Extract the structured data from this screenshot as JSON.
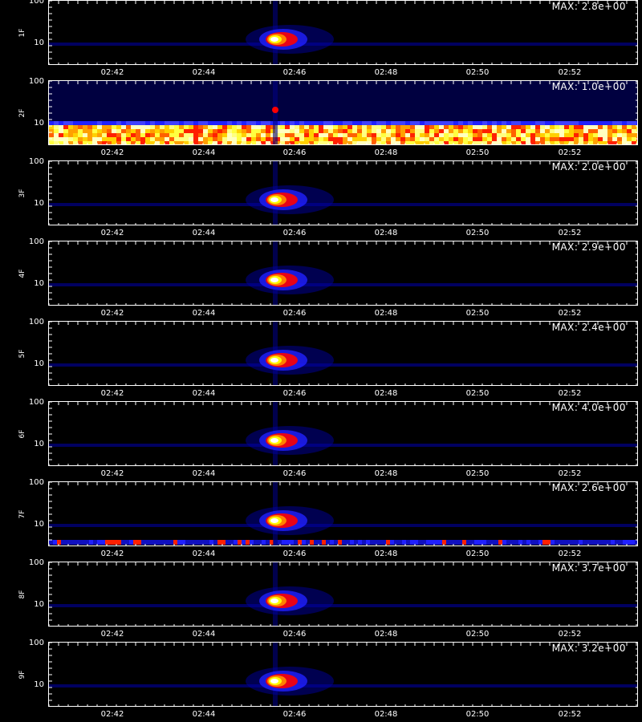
{
  "chart_data": {
    "type": "heatmap",
    "x_tick_labels": [
      "02:42",
      "02:44",
      "02:46",
      "02:48",
      "02:50",
      "02:52"
    ],
    "y_tick_labels": [
      "100",
      "10"
    ],
    "y_scale": "log",
    "colormap": [
      "#000000",
      "#0000ff",
      "#ff0000",
      "#ffff00",
      "#ffffff"
    ],
    "panels": [
      {
        "label": "1F",
        "max_text": "MAX: 2.8e+00",
        "burst_x": "02:45:30",
        "burst_y": 10,
        "background_band": "none"
      },
      {
        "label": "2F",
        "max_text": "MAX: 1.0e+00",
        "burst_x": "02:45:30",
        "burst_y": 20,
        "background_band": "strong-low-frequency"
      },
      {
        "label": "3F",
        "max_text": "MAX: 2.0e+00",
        "burst_x": "02:45:30",
        "burst_y": 10,
        "background_band": "none"
      },
      {
        "label": "4F",
        "max_text": "MAX: 2.9e+00",
        "burst_x": "02:45:30",
        "burst_y": 10,
        "background_band": "none"
      },
      {
        "label": "5F",
        "max_text": "MAX: 2.4e+00",
        "burst_x": "02:45:30",
        "burst_y": 10,
        "background_band": "none"
      },
      {
        "label": "6F",
        "max_text": "MAX: 4.0e+00",
        "burst_x": "02:45:30",
        "burst_y": 10,
        "background_band": "none"
      },
      {
        "label": "7F",
        "max_text": "MAX: 2.6e+00",
        "burst_x": "02:45:30",
        "burst_y": 10,
        "background_band": "weak-low-frequency"
      },
      {
        "label": "8F",
        "max_text": "MAX: 3.7e+00",
        "burst_x": "02:45:30",
        "burst_y": 10,
        "background_band": "none"
      },
      {
        "label": "9F",
        "max_text": "MAX: 3.2e+00",
        "burst_x": "02:45:30",
        "burst_y": 10,
        "background_band": "none"
      }
    ]
  }
}
